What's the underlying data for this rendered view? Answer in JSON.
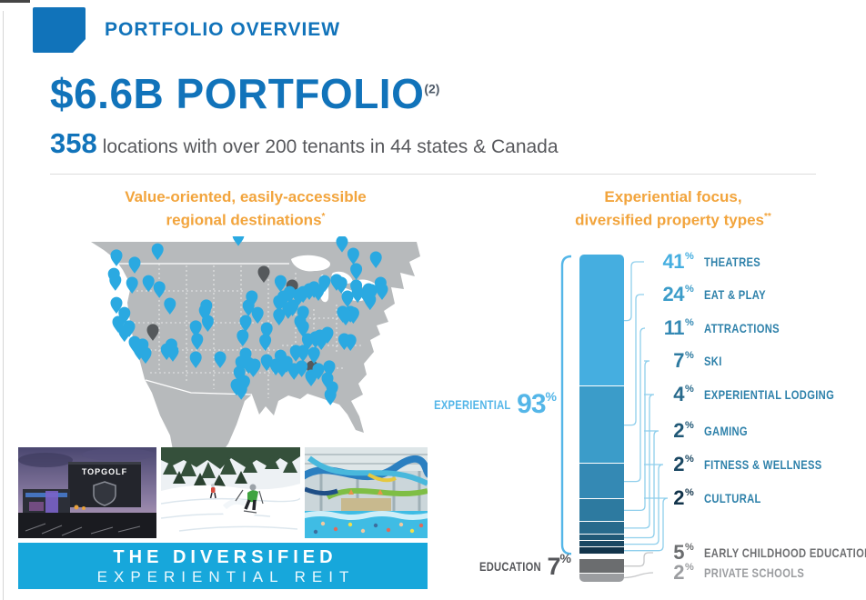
{
  "colors": {
    "brand-blue": "#1173BA",
    "orange": "#F2A43C",
    "lightblue": "#54B6E8",
    "banner-blue": "#17A7DB",
    "map-land": "#B7BABC",
    "pin-blue": "#2AA9E1",
    "pin-gray": "#55595C",
    "connector-blue": "#8FCFEC",
    "connector-gray": "#C6C7C9"
  },
  "header": {
    "section_label": "PORTFOLIO OVERVIEW"
  },
  "title": {
    "main": "$6.6B PORTFOLIO",
    "sup": "(2)",
    "stat_number": "358",
    "stat_text": "locations with over 200 tenants in 44 states & Canada"
  },
  "left_panel": {
    "heading_line1": "Value-oriented, easily-accessible",
    "heading_line2": "regional destinations",
    "heading_sup": "*",
    "map": {
      "pins_blue": [
        [
          14.5,
          14
        ],
        [
          25.8,
          11.1
        ],
        [
          19.5,
          17.4
        ],
        [
          13.8,
          22.6
        ],
        [
          14.2,
          25.5
        ],
        [
          18.8,
          26.8
        ],
        [
          23.3,
          26
        ],
        [
          26.3,
          28.9
        ],
        [
          29.2,
          36.6
        ],
        [
          14.5,
          36.2
        ],
        [
          16.7,
          40.9
        ],
        [
          15,
          45.1
        ],
        [
          18,
          47.2
        ],
        [
          16.7,
          49.4
        ],
        [
          19.5,
          54.5
        ],
        [
          21.7,
          55.7
        ],
        [
          20.8,
          57.9
        ],
        [
          22.5,
          59.6
        ],
        [
          29.6,
          55.7
        ],
        [
          30,
          58.7
        ],
        [
          28.3,
          57.9
        ],
        [
          39.2,
          37.4
        ],
        [
          38.8,
          39.6
        ],
        [
          39.6,
          44.7
        ],
        [
          36.3,
          47.2
        ],
        [
          36.7,
          53.2
        ],
        [
          36.3,
          61.7
        ],
        [
          43,
          61.7
        ],
        [
          48,
          4.5
        ],
        [
          51.7,
          33.2
        ],
        [
          50.8,
          37.4
        ],
        [
          53.3,
          40.9
        ],
        [
          50,
          44.7
        ],
        [
          49.2,
          51.5
        ],
        [
          55.8,
          48.1
        ],
        [
          55.4,
          53.6
        ],
        [
          50,
          60
        ],
        [
          48.8,
          63.8
        ],
        [
          50.8,
          64.3
        ],
        [
          52.1,
          65.9
        ],
        [
          48.3,
          68.5
        ],
        [
          49.6,
          72.8
        ],
        [
          47.5,
          74.5
        ],
        [
          48.8,
          76.5
        ],
        [
          52.5,
          65.1
        ],
        [
          55.8,
          63
        ],
        [
          59.2,
          41.7
        ],
        [
          59.6,
          26
        ],
        [
          60.4,
          33.2
        ],
        [
          59.2,
          35.3
        ],
        [
          62.1,
          31.1
        ],
        [
          62.9,
          37.4
        ],
        [
          61.7,
          38.7
        ],
        [
          64.6,
          32.3
        ],
        [
          65.8,
          31.1
        ],
        [
          67.5,
          29.8
        ],
        [
          68.8,
          28.9
        ],
        [
          70,
          30.2
        ],
        [
          71.7,
          26
        ],
        [
          75,
          25.5
        ],
        [
          76.3,
          26.8
        ],
        [
          65.8,
          40.4
        ],
        [
          65,
          44.7
        ],
        [
          65.8,
          47.2
        ],
        [
          67.1,
          53.2
        ],
        [
          69.2,
          52.3
        ],
        [
          70.8,
          53.2
        ],
        [
          68.8,
          59.6
        ],
        [
          65.8,
          58.7
        ],
        [
          63.8,
          58.7
        ],
        [
          59.6,
          60.9
        ],
        [
          58.3,
          65.1
        ],
        [
          60,
          65.9
        ],
        [
          61.3,
          63.8
        ],
        [
          63.3,
          67.2
        ],
        [
          65.4,
          65.9
        ],
        [
          68,
          70.2
        ],
        [
          70,
          67.2
        ],
        [
          73,
          65.9
        ],
        [
          72.5,
          71.5
        ],
        [
          73.8,
          75.7
        ],
        [
          73.3,
          79.1
        ],
        [
          78,
          33.2
        ],
        [
          76.7,
          40.4
        ],
        [
          78.8,
          40.4
        ],
        [
          79.6,
          40.9
        ],
        [
          80.4,
          28.1
        ],
        [
          80.8,
          31.1
        ],
        [
          83.8,
          29.8
        ],
        [
          84.6,
          30.2
        ],
        [
          87.1,
          26.8
        ],
        [
          85.8,
          14.9
        ],
        [
          79.6,
          13.2
        ],
        [
          80.4,
          20.4
        ],
        [
          87.5,
          29.8
        ],
        [
          83.3,
          31.9
        ],
        [
          84.2,
          34.5
        ],
        [
          77.5,
          41.7
        ],
        [
          78.8,
          53.6
        ],
        [
          77.1,
          53.2
        ],
        [
          72.5,
          50.2
        ],
        [
          70.4,
          51.5
        ],
        [
          76.5,
          7.5
        ]
      ],
      "pins_gray": [
        [
          55,
          21.7
        ],
        [
          62.8,
          28.1
        ],
        [
          24.5,
          48.9
        ],
        [
          68.3,
          66
        ]
      ]
    },
    "photos": [
      {
        "name": "topgolf-exterior",
        "sign_text": "TOPGOLF"
      },
      {
        "name": "ski-slope"
      },
      {
        "name": "indoor-waterpark"
      }
    ],
    "banner": {
      "line1": "THE DIVERSIFIED",
      "line2": "EXPERIENTIAL REIT"
    }
  },
  "right_panel": {
    "heading_line1": "Experiential focus,",
    "heading_line2": "diversified property types",
    "heading_sup": "**"
  },
  "chart_data": {
    "type": "stacked-bar",
    "title": "Experiential focus, diversified property types",
    "unit": "%",
    "percent_sign": "%",
    "legend_position": "right",
    "axes": "none",
    "groups": [
      {
        "name": "EXPERIENTIAL",
        "pct": 93
      },
      {
        "name": "EDUCATION",
        "pct": 7
      }
    ],
    "segments": [
      {
        "label": "THEATRES",
        "pct": 41,
        "group": "EXPERIENTIAL",
        "color": "#45AEE0",
        "label_color": "#2E81AA"
      },
      {
        "label": "EAT & PLAY",
        "pct": 24,
        "group": "EXPERIENTIAL",
        "color": "#3B9CC9",
        "label_color": "#2E81AA"
      },
      {
        "label": "ATTRACTIONS",
        "pct": 11,
        "group": "EXPERIENTIAL",
        "color": "#3489B4",
        "label_color": "#2E81AA"
      },
      {
        "label": "SKI",
        "pct": 7,
        "group": "EXPERIENTIAL",
        "color": "#2D7AA0",
        "label_color": "#2E81AA"
      },
      {
        "label": "EXPERIENTIAL LODGING",
        "pct": 4,
        "group": "EXPERIENTIAL",
        "color": "#286A8C",
        "label_color": "#2E81AA"
      },
      {
        "label": "GAMING",
        "pct": 2,
        "group": "EXPERIENTIAL",
        "color": "#215977",
        "label_color": "#2E81AA"
      },
      {
        "label": "FITNESS & WELLNESS",
        "pct": 2,
        "group": "EXPERIENTIAL",
        "color": "#1A4762",
        "label_color": "#2E81AA"
      },
      {
        "label": "CULTURAL",
        "pct": 2,
        "group": "EXPERIENTIAL",
        "color": "#12344B",
        "label_color": "#2E81AA"
      },
      {
        "label": "EARLY CHILDHOOD EDUCATION",
        "pct": 5,
        "group": "EDUCATION",
        "color": "#6B6D6F",
        "label_color": "#6E6F71"
      },
      {
        "label": "PRIVATE SCHOOLS",
        "pct": 2,
        "group": "EDUCATION",
        "color": "#9B9DA0",
        "label_color": "#9B9DA0"
      }
    ]
  }
}
